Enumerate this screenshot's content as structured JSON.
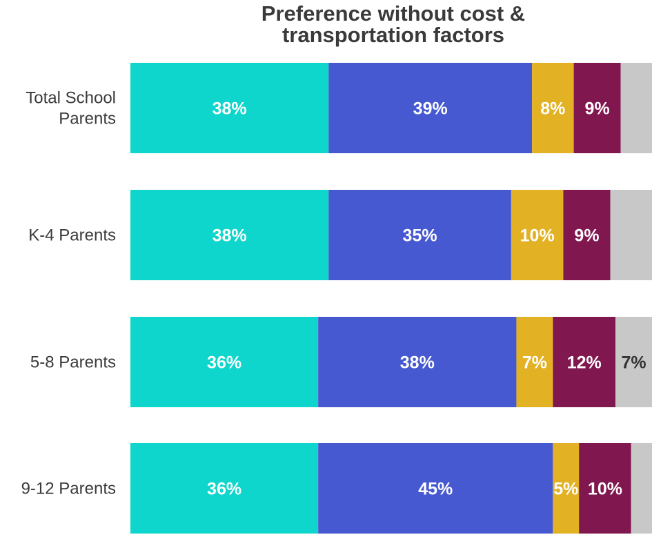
{
  "chart_data": {
    "type": "bar",
    "orientation": "horizontal",
    "stacked": true,
    "normalized": true,
    "title_lines": [
      "Preference without cost &",
      "transportation factors"
    ],
    "categories": [
      [
        "Total School",
        "Parents"
      ],
      [
        "K-4 Parents"
      ],
      [
        "5-8 Parents"
      ],
      [
        "9-12 Parents"
      ]
    ],
    "xlim": [
      0,
      100
    ],
    "grid": false,
    "legend": "none",
    "series": [
      {
        "color": "#0fd6cc",
        "label_color": "#ffffff",
        "values": [
          38,
          38,
          36,
          36
        ],
        "labels": [
          "38%",
          "38%",
          "36%",
          "36%"
        ]
      },
      {
        "color": "#4659d0",
        "label_color": "#ffffff",
        "values": [
          39,
          35,
          38,
          45
        ],
        "labels": [
          "39%",
          "35%",
          "38%",
          "45%"
        ]
      },
      {
        "color": "#e2b124",
        "label_color": "#ffffff",
        "values": [
          8,
          10,
          7,
          5
        ],
        "labels": [
          "8%",
          "10%",
          "7%",
          "5%"
        ]
      },
      {
        "color": "#81174f",
        "label_color": "#ffffff",
        "values": [
          9,
          9,
          12,
          10
        ],
        "labels": [
          "9%",
          "9%",
          "12%",
          "10%"
        ]
      },
      {
        "color": "#c8c8c8",
        "label_color": "#333333",
        "values": [
          6,
          8,
          7,
          4
        ],
        "labels": [
          "",
          "",
          "7%",
          ""
        ]
      }
    ]
  }
}
